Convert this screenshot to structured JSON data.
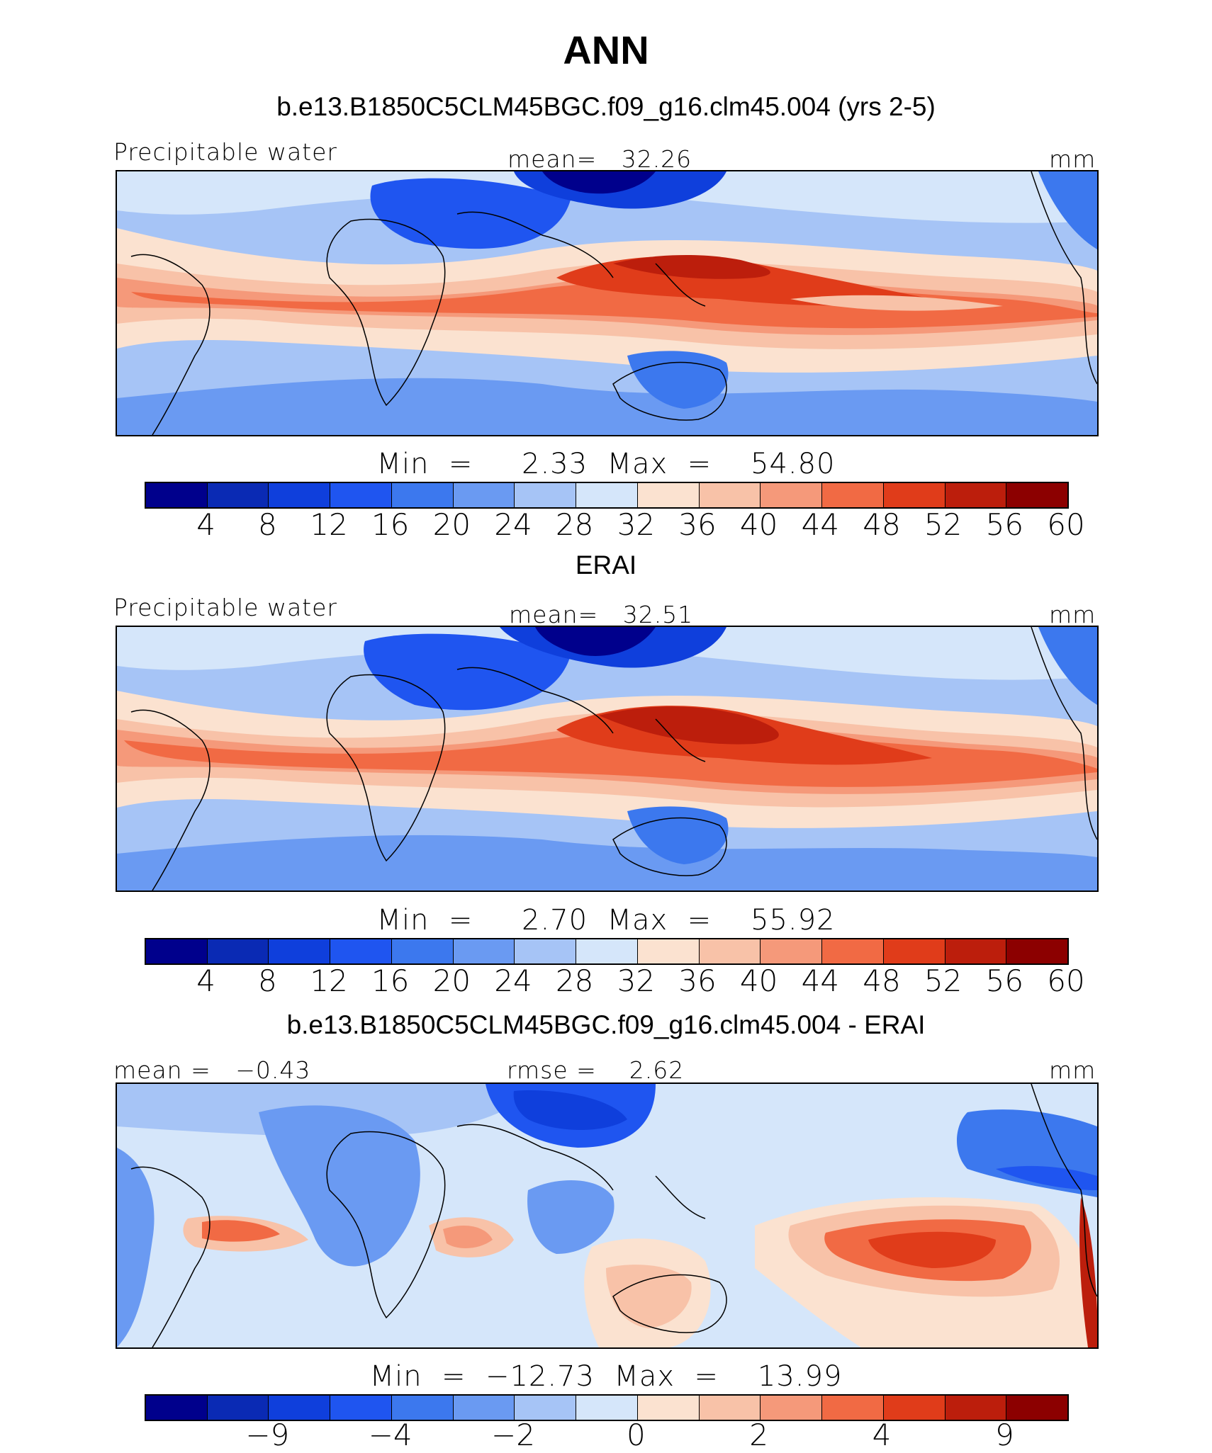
{
  "title": "ANN",
  "panels": [
    {
      "id": "model",
      "header": "b.e13.B1850C5CLM45BGC.f09_g16.clm45.004 (yrs 2-5)",
      "left_label": "Precipitable water",
      "center_label": "mean=   32.26",
      "right_label": "mm",
      "min_max": "Min  =     2.33  Max  =    54.80",
      "colorbar": {
        "colors": [
          "#00008c",
          "#0a2ab4",
          "#0f3fdc",
          "#1f55f0",
          "#3c78ee",
          "#6a9af2",
          "#a6c4f6",
          "#d5e6fa",
          "#fbe2d0",
          "#f8c2a8",
          "#f5997a",
          "#f16a44",
          "#e03c1a",
          "#bc1e0c",
          "#8c0000"
        ],
        "ticks": [
          "4",
          "8",
          "12",
          "16",
          "20",
          "24",
          "28",
          "32",
          "36",
          "40",
          "44",
          "48",
          "52",
          "56",
          "60"
        ]
      }
    },
    {
      "id": "obs",
      "header": "ERAI",
      "left_label": "Precipitable water",
      "center_label": "mean=   32.51",
      "right_label": "mm",
      "min_max": "Min  =     2.70  Max  =    55.92",
      "colorbar": {
        "colors": [
          "#00008c",
          "#0a2ab4",
          "#0f3fdc",
          "#1f55f0",
          "#3c78ee",
          "#6a9af2",
          "#a6c4f6",
          "#d5e6fa",
          "#fbe2d0",
          "#f8c2a8",
          "#f5997a",
          "#f16a44",
          "#e03c1a",
          "#bc1e0c",
          "#8c0000"
        ],
        "ticks": [
          "4",
          "8",
          "12",
          "16",
          "20",
          "24",
          "28",
          "32",
          "36",
          "40",
          "44",
          "48",
          "52",
          "56",
          "60"
        ]
      }
    },
    {
      "id": "diff",
      "header": "b.e13.B1850C5CLM45BGC.f09_g16.clm45.004 - ERAI",
      "left_label": "mean =   −0.43",
      "center_label": "rmse =    2.62",
      "right_label": "mm",
      "min_max": "Min  =  −12.73  Max  =    13.99",
      "colorbar": {
        "colors": [
          "#00008c",
          "#0a2ab4",
          "#0f3fdc",
          "#1f55f0",
          "#3c78ee",
          "#6a9af2",
          "#a6c4f6",
          "#d5e6fa",
          "#fbe2d0",
          "#f8c2a8",
          "#f5997a",
          "#f16a44",
          "#e03c1a",
          "#bc1e0c",
          "#8c0000"
        ],
        "ticks": [
          "−9",
          "−4",
          "−2",
          "0",
          "2",
          "4",
          "9"
        ],
        "tick_boundaries": [
          2,
          4,
          6,
          8,
          10,
          12,
          14
        ]
      }
    }
  ]
}
